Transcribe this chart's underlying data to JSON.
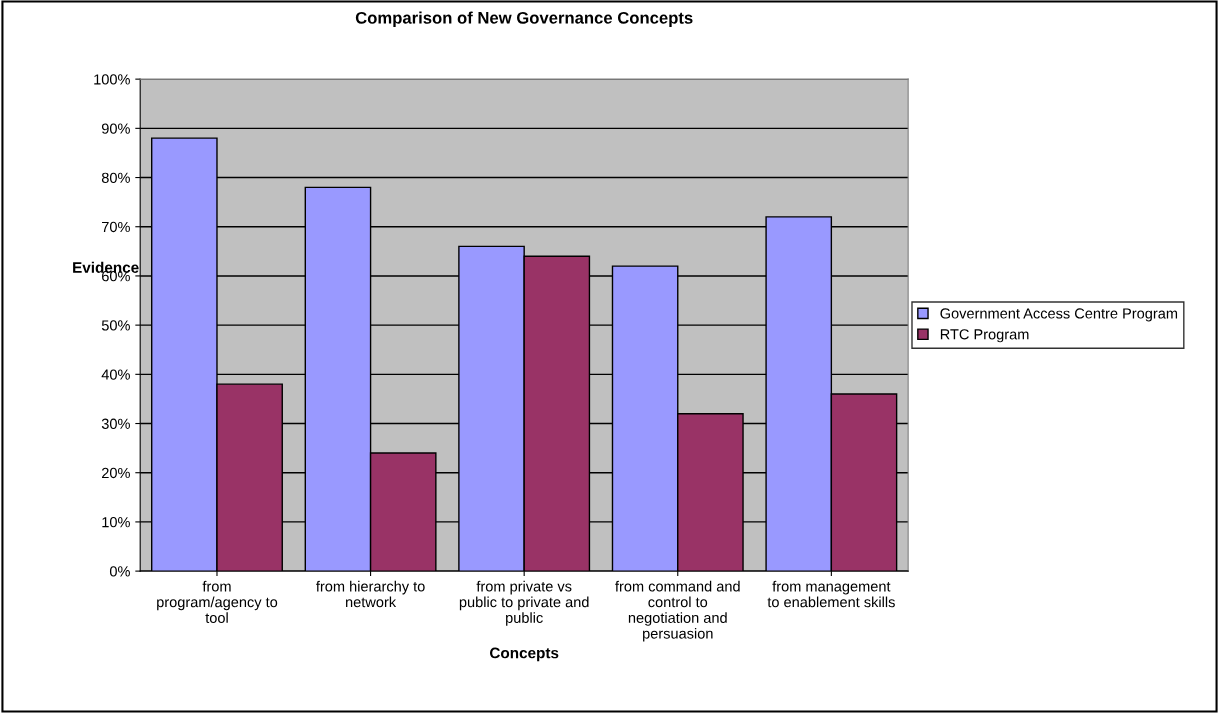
{
  "chart_data": {
    "type": "bar",
    "title": "Comparison of New Governance Concepts",
    "xlabel": "Concepts",
    "ylabel": "Evidence",
    "categories": [
      "from\nprogram/agency to\ntool",
      "from hierarchy to\nnetwork",
      "from private vs\npublic to private and\npublic",
      "from command and\ncontrol to\nnegotiation and\npersuasion",
      "from management\nto enablement skills"
    ],
    "series": [
      {
        "name": "Government Access Centre Program",
        "color": "#9999ff",
        "values": [
          0.88,
          0.78,
          0.66,
          0.62,
          0.72
        ]
      },
      {
        "name": "RTC Program",
        "color": "#993366",
        "values": [
          0.38,
          0.24,
          0.64,
          0.32,
          0.36
        ]
      }
    ],
    "ylim": [
      0,
      1
    ],
    "yticks": [
      {
        "value": 0,
        "label": "0%"
      },
      {
        "value": 0.1,
        "label": "10%"
      },
      {
        "value": 0.2,
        "label": "20%"
      },
      {
        "value": 0.3,
        "label": "30%"
      },
      {
        "value": 0.4,
        "label": "40%"
      },
      {
        "value": 0.5,
        "label": "50%"
      },
      {
        "value": 0.6,
        "label": "60%"
      },
      {
        "value": 0.7,
        "label": "70%"
      },
      {
        "value": 0.8,
        "label": "80%"
      },
      {
        "value": 0.9,
        "label": "90%"
      },
      {
        "value": 1,
        "label": "100%"
      }
    ],
    "grid": "y",
    "legend": "right"
  }
}
